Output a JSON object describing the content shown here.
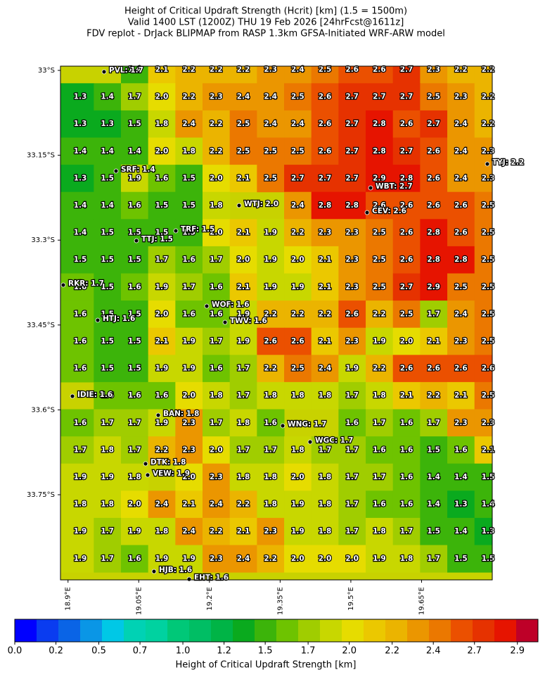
{
  "title": [
    "Height of Critical Updraft Strength (Hcrit) [km] (1.5 = 1500m)",
    "Valid 1400 LST (1200Z) THU 19 Feb 2026 [24hrFcst@1611z]",
    "FDV replot - DrJack BLIPMAP from RASP 1.3km GFSA-Initiated WRF-ARW model"
  ],
  "map": {
    "lon_lim": [
      18.884,
      19.8
    ],
    "lat_lim": [
      -32.9925,
      -33.9005
    ],
    "lon_ticks": [
      {
        "value": 18.9,
        "label": "18.9°E"
      },
      {
        "value": 19.05,
        "label": "19.05°E"
      },
      {
        "value": 19.2,
        "label": "19.2°E"
      },
      {
        "value": 19.35,
        "label": "19.35°E"
      },
      {
        "value": 19.5,
        "label": "19.5°E"
      },
      {
        "value": 19.65,
        "label": "19.65°E"
      }
    ],
    "lat_ticks": [
      {
        "value": -33.0,
        "label": "33°S"
      },
      {
        "value": -33.15,
        "label": "33.15°S"
      },
      {
        "value": -33.3,
        "label": "33.3°S"
      },
      {
        "value": -33.45,
        "label": "33.45°S"
      },
      {
        "value": -33.6,
        "label": "33.6°S"
      },
      {
        "value": -33.75,
        "label": "33.75°S"
      }
    ],
    "grid": [
      [
        null,
        null,
        "1.4",
        "2.1",
        "2.2",
        "2.2",
        "2.2",
        "2.3",
        "2.4",
        "2.5",
        "2.6",
        "2.6",
        "2.7",
        "2.3",
        "2.2",
        "2.2"
      ],
      [
        "1.3",
        "1.4",
        "1.7",
        "2.0",
        "2.2",
        "2.3",
        "2.4",
        "2.4",
        "2.5",
        "2.6",
        "2.7",
        "2.7",
        "2.7",
        "2.5",
        "2.3",
        "2.2"
      ],
      [
        "1.3",
        "1.3",
        "1.5",
        "1.8",
        "2.4",
        "2.2",
        "2.5",
        "2.4",
        "2.4",
        "2.6",
        "2.7",
        "2.8",
        "2.6",
        "2.7",
        "2.4",
        "2.2"
      ],
      [
        "1.4",
        "1.4",
        "1.4",
        "2.0",
        "1.8",
        "2.2",
        "2.5",
        "2.5",
        "2.5",
        "2.6",
        "2.7",
        "2.8",
        "2.7",
        "2.6",
        "2.4",
        "2.3"
      ],
      [
        "1.3",
        "1.5",
        "1.9",
        "1.6",
        "1.5",
        "2.0",
        "2.1",
        "2.5",
        "2.7",
        "2.7",
        "2.7",
        "2.9",
        "2.8",
        "2.6",
        "2.4",
        "2.3"
      ],
      [
        "1.4",
        "1.4",
        "1.6",
        "1.5",
        "1.5",
        "1.8",
        null,
        null,
        "2.4",
        "2.8",
        "2.8",
        "2.6",
        "2.6",
        "2.6",
        "2.6",
        "2.5"
      ],
      [
        "1.4",
        "1.5",
        "1.5",
        "1.5",
        "1.5",
        "2.0",
        "2.1",
        "1.9",
        "2.2",
        "2.3",
        "2.3",
        "2.5",
        "2.6",
        "2.8",
        "2.6",
        "2.5"
      ],
      [
        "1.5",
        "1.5",
        "1.5",
        "1.7",
        "1.6",
        "1.7",
        "2.0",
        "1.9",
        "2.0",
        "2.1",
        "2.3",
        "2.5",
        "2.6",
        "2.8",
        "2.8",
        "2.5"
      ],
      [
        "1.6",
        "1.5",
        "1.6",
        "1.9",
        "1.7",
        "1.6",
        "2.1",
        "1.9",
        "1.9",
        "2.1",
        "2.3",
        "2.5",
        "2.7",
        "2.9",
        "2.5",
        "2.5"
      ],
      [
        "1.6",
        "1.5",
        "1.5",
        "2.0",
        "1.6",
        "1.6",
        "1.9",
        "2.2",
        "2.2",
        "2.2",
        "2.6",
        "2.2",
        "2.5",
        "1.7",
        "2.4",
        "2.5"
      ],
      [
        "1.6",
        "1.5",
        "1.5",
        "2.1",
        "1.9",
        "1.7",
        "1.9",
        "2.6",
        "2.6",
        "2.1",
        "2.3",
        "1.9",
        "2.0",
        "2.1",
        "2.3",
        "2.5"
      ],
      [
        "1.6",
        "1.5",
        "1.5",
        "1.9",
        "1.9",
        "1.6",
        "1.7",
        "2.2",
        "2.5",
        "2.4",
        "1.9",
        "2.2",
        "2.6",
        "2.6",
        "2.6",
        "2.6"
      ],
      [
        null,
        "1.6",
        "1.6",
        "1.6",
        "2.0",
        "1.8",
        "1.7",
        "1.8",
        "1.8",
        "1.8",
        "1.7",
        "1.8",
        "2.1",
        "2.2",
        "2.1",
        "2.5"
      ],
      [
        "1.6",
        "1.7",
        "1.7",
        "1.9",
        "2.3",
        "1.7",
        "1.8",
        "1.6",
        null,
        null,
        "1.6",
        "1.7",
        "1.6",
        "1.7",
        "2.3",
        "2.3"
      ],
      [
        "1.7",
        "1.8",
        "1.7",
        "2.2",
        "2.3",
        "2.0",
        "1.7",
        "1.7",
        "1.8",
        "1.7",
        "1.7",
        "1.6",
        "1.6",
        "1.5",
        "1.6",
        "2.1"
      ],
      [
        "1.9",
        "1.9",
        "1.8",
        null,
        "2.0",
        "2.3",
        "1.8",
        "1.8",
        "2.0",
        "1.8",
        "1.7",
        "1.7",
        "1.6",
        "1.4",
        "1.4",
        "1.5"
      ],
      [
        "1.8",
        "1.8",
        "2.0",
        "2.4",
        "2.1",
        "2.4",
        "2.2",
        "1.8",
        "1.9",
        "1.8",
        "1.7",
        "1.6",
        "1.6",
        "1.4",
        "1.3",
        "1.4"
      ],
      [
        "1.9",
        "1.7",
        "1.9",
        "1.8",
        "2.4",
        "2.2",
        "2.1",
        "2.3",
        "1.9",
        "1.8",
        "1.7",
        "1.8",
        "1.7",
        "1.5",
        "1.4",
        "1.3"
      ],
      [
        "1.9",
        "1.7",
        "1.6",
        "1.9",
        "1.9",
        "2.3",
        "2.4",
        "2.2",
        "2.0",
        "2.0",
        "2.0",
        "1.9",
        "1.8",
        "1.7",
        "1.5",
        "1.5"
      ]
    ],
    "stations": [
      "PVL: 1.7",
      "SRF: 1.4",
      "TRF: 1.5",
      "TTJ: 1.5",
      "WTJ: 2.0",
      "WBT: 2.7",
      "CEV: 2.6",
      "TYJ: 2.2",
      "RKR: 1.7",
      "WOF: 1.6",
      "TWV: 1.6",
      "HTJ: 1.6",
      "IDIE: 1.6",
      "BAN: 1.8",
      "WNG: 1.7",
      "WGC: 1.7",
      "DTK: 1.8",
      "VEW: 1.9",
      "HJB: 1.6",
      "EHT: 1.6"
    ]
  },
  "colorbar": {
    "label": "Height of Critical Updraft Strength [km]",
    "lim": [
      0,
      3.05
    ],
    "ticks": [
      {
        "value": 0,
        "label": "0.0"
      },
      {
        "value": 0.24,
        "label": "0.2"
      },
      {
        "value": 0.49,
        "label": "0.5"
      },
      {
        "value": 0.73,
        "label": "0.7"
      },
      {
        "value": 0.98,
        "label": "1.0"
      },
      {
        "value": 1.22,
        "label": "1.2"
      },
      {
        "value": 1.46,
        "label": "1.5"
      },
      {
        "value": 1.71,
        "label": "1.7"
      },
      {
        "value": 1.95,
        "label": "2.0"
      },
      {
        "value": 2.2,
        "label": "2.2"
      },
      {
        "value": 2.44,
        "label": "2.4"
      },
      {
        "value": 2.68,
        "label": "2.7"
      },
      {
        "value": 2.93,
        "label": "2.9"
      }
    ],
    "colors": [
      "#0000ff",
      "#0a3cf0",
      "#0a64e6",
      "#0a96e6",
      "#00c8e6",
      "#00d2b4",
      "#00d2a0",
      "#00c878",
      "#00be64",
      "#00b446",
      "#0aaa1e",
      "#3cb40a",
      "#6ec300",
      "#a0cd00",
      "#c8d700",
      "#e6dc00",
      "#ebc800",
      "#ebb400",
      "#eb9600",
      "#eb7800",
      "#eb5000",
      "#e63200",
      "#e61400",
      "#be0028"
    ]
  }
}
